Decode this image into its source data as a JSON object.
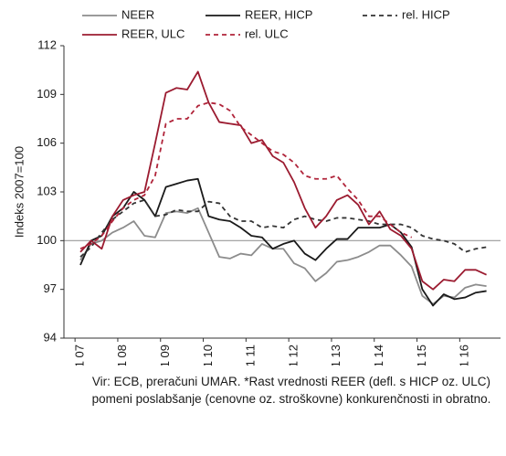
{
  "chart_data": {
    "type": "line",
    "y_label": "Indeks 2007=100",
    "source": "Vir: ECB, preračuni UMAR. *Rast vrednosti REER (defl. s HICP oz. ULC) pomeni poslabšanje (cenovne oz. stroškovne) konkurenčnosti in obratno.",
    "categories": [
      "Q1 07",
      null,
      null,
      null,
      "Q1 08",
      null,
      null,
      null,
      "Q1 09",
      null,
      null,
      null,
      "Q1 10",
      null,
      null,
      null,
      "Q1 11",
      null,
      null,
      null,
      "Q1 12",
      null,
      null,
      null,
      "Q1 13",
      null,
      null,
      null,
      "Q1 14",
      null,
      null,
      null,
      "Q1 15",
      null,
      null,
      null,
      "Q1 16",
      null,
      null
    ],
    "ylim": [
      94,
      112
    ],
    "yticks": [
      94,
      97,
      100,
      103,
      106,
      109,
      112
    ],
    "hline": 100,
    "series": [
      {
        "name": "NEER",
        "color": "#8c8c8c",
        "dash": false,
        "values": [
          98.8,
          99.8,
          100,
          100.5,
          100.8,
          101.2,
          100.3,
          100.2,
          101.7,
          101.8,
          101.7,
          102,
          100.5,
          99,
          98.9,
          99.2,
          99.1,
          99.8,
          99.5,
          99.5,
          98.6,
          98.3,
          97.5,
          98,
          98.7,
          98.8,
          99,
          99.3,
          99.7,
          99.7,
          99.1,
          98.4,
          96.6,
          96.1,
          96.6,
          96.5,
          97.1,
          97.3,
          97.2
        ]
      },
      {
        "name": "REER, HICP",
        "color": "#1a1a1a",
        "dash": false,
        "values": [
          98.5,
          100,
          100.3,
          101.5,
          102,
          103,
          102.5,
          101.5,
          103.3,
          103.5,
          103.7,
          103.8,
          101.5,
          101.3,
          101.2,
          100.8,
          100.3,
          100.2,
          99.5,
          99.8,
          100,
          99.2,
          98.8,
          99.5,
          100.1,
          100.1,
          100.8,
          100.8,
          100.8,
          101,
          100.5,
          99.6,
          97,
          96,
          96.7,
          96.4,
          96.5,
          96.8,
          96.9
        ]
      },
      {
        "name": "rel. HICP",
        "color": "#333333",
        "dash": true,
        "values": [
          99,
          99.6,
          100.5,
          101.3,
          101.8,
          102.3,
          102.5,
          101.5,
          101.6,
          101.9,
          101.8,
          101.8,
          102.4,
          102.3,
          101.5,
          101.2,
          101.2,
          100.8,
          100.9,
          100.8,
          101.3,
          101.5,
          101.3,
          101.2,
          101.4,
          101.4,
          101.3,
          101.2,
          101,
          101,
          101,
          100.8,
          100.3,
          100.1,
          100,
          99.8,
          99.3,
          99.5,
          99.6
        ]
      },
      {
        "name": "REER, ULC",
        "color": "#9b1b30",
        "dash": false,
        "values": [
          99.3,
          100,
          99.5,
          101.5,
          102.5,
          102.8,
          103,
          106,
          109.1,
          109.4,
          109.3,
          110.4,
          108.5,
          107.3,
          107.2,
          107.1,
          106,
          106.2,
          105.2,
          104.8,
          103.6,
          102,
          100.8,
          101.5,
          102.5,
          102.8,
          102.2,
          101,
          101.8,
          100.7,
          100.3,
          99.5,
          97.5,
          97,
          97.6,
          97.5,
          98.2,
          98.2,
          97.9
        ]
      },
      {
        "name": "rel. ULC",
        "color": "#b0243a",
        "dash": true,
        "values": [
          99.5,
          99.8,
          100.3,
          101.2,
          102,
          102.5,
          102.8,
          104,
          107.2,
          107.5,
          107.5,
          108.3,
          108.5,
          108.4,
          108,
          107,
          106.5,
          106,
          105.5,
          105.3,
          104.8,
          104,
          103.8,
          103.8,
          104,
          103.2,
          102.5,
          101.5,
          101.5,
          101,
          100.5,
          100.2,
          null,
          null,
          null,
          null,
          null,
          null,
          null
        ]
      }
    ]
  }
}
